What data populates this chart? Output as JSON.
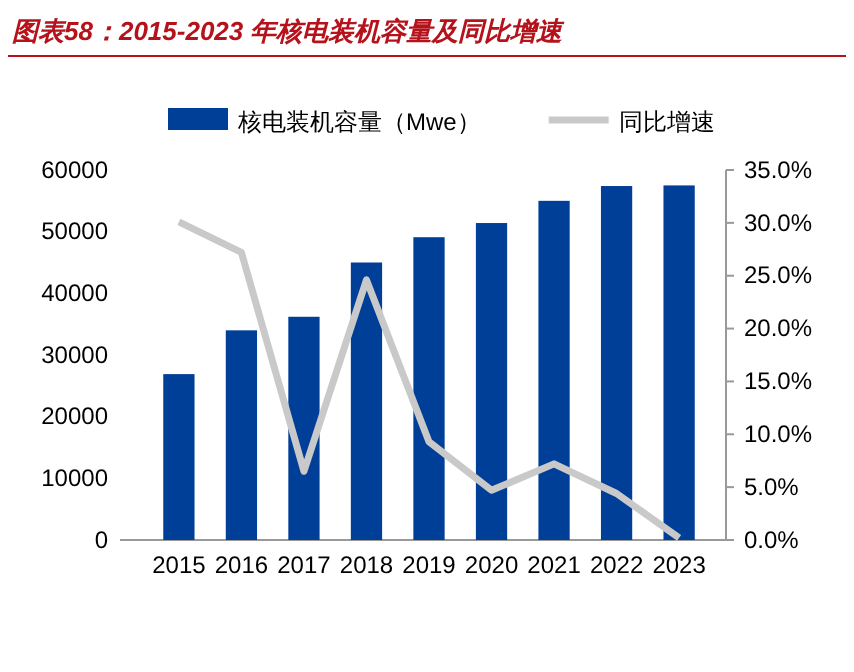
{
  "chart_data": {
    "type": "bar",
    "title": "图表58：2015-2023 年核电装机容量及同比增速",
    "categories": [
      "2015",
      "2016",
      "2017",
      "2018",
      "2019",
      "2020",
      "2021",
      "2022",
      "2023"
    ],
    "series": [
      {
        "name": "核电装机容量（Mwe）",
        "color": "#003f98",
        "values": [
          26900,
          34000,
          36200,
          45000,
          49100,
          51400,
          55000,
          57400,
          57500
        ]
      },
      {
        "name": "同比增速",
        "type": "line",
        "axis": "y2",
        "color": "#c9c9c9",
        "values": [
          30.1,
          27.2,
          6.5,
          24.6,
          9.3,
          4.7,
          7.2,
          4.4,
          0.2
        ]
      }
    ],
    "ylim": [
      0,
      60000
    ],
    "yticks": [
      0,
      10000,
      20000,
      30000,
      40000,
      50000,
      60000
    ],
    "y2lim": [
      0,
      35
    ],
    "y2ticks": [
      {
        "value": 0,
        "label": "0.0%"
      },
      {
        "value": 5,
        "label": "5.0%"
      },
      {
        "value": 10,
        "label": "10.0%"
      },
      {
        "value": 15,
        "label": "15.0%"
      },
      {
        "value": 20,
        "label": "20.0%"
      },
      {
        "value": 25,
        "label": "25.0%"
      },
      {
        "value": 30,
        "label": "30.0%"
      },
      {
        "value": 35,
        "label": "35.0%"
      }
    ],
    "legend": "top",
    "grid": false,
    "marker": "none"
  }
}
